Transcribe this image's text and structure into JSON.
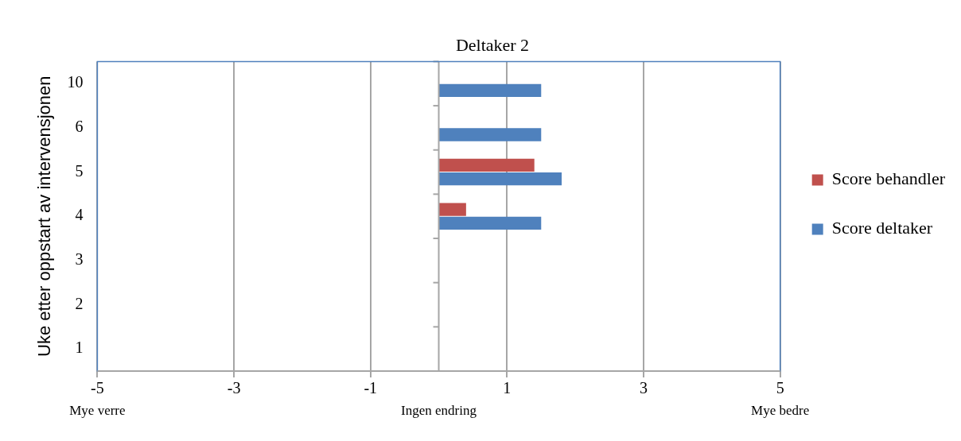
{
  "chart_data": {
    "type": "bar",
    "orientation": "horizontal",
    "title": "Deltaker 2",
    "ylabel": "Uke etter oppstart av intervensjonen",
    "categories": [
      "10",
      "6",
      "5",
      "4",
      "3",
      "2",
      "1"
    ],
    "series": [
      {
        "name": "Score behandler",
        "color": "#c0504d",
        "values": [
          null,
          null,
          1.4,
          0.4,
          null,
          null,
          null
        ]
      },
      {
        "name": "Score deltaker",
        "color": "#4f81bd",
        "values": [
          1.5,
          1.5,
          1.8,
          1.5,
          null,
          null,
          null
        ]
      }
    ],
    "xlim": [
      -5,
      5
    ],
    "xticks": [
      -5,
      -3,
      -1,
      1,
      3,
      5
    ],
    "grid": "x",
    "legend": "right",
    "annotations": [
      "Mye verre",
      "Ingen endring",
      "Mye bedre"
    ]
  }
}
